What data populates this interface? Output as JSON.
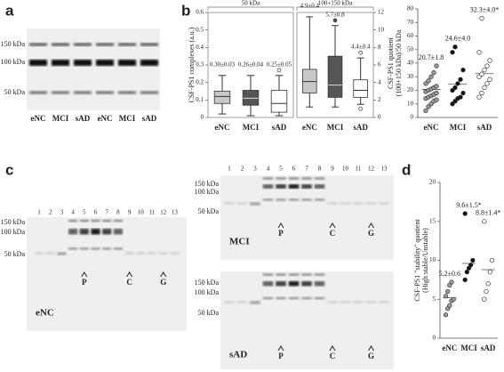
{
  "panel_labels": [
    "a",
    "b",
    "c",
    "d"
  ],
  "size_markers": [
    "150 kDa",
    "100 kDa",
    "50 kDa"
  ],
  "blot_a": {
    "lanes": [
      "eNC",
      "MCI",
      "sAD",
      "eNC",
      "MCI",
      "sAD"
    ]
  },
  "blot_c": {
    "lane_numbers": [
      1,
      2,
      3,
      4,
      5,
      6,
      7,
      8,
      9,
      10,
      11,
      12,
      13
    ],
    "markers": [
      "P",
      "C",
      "G"
    ],
    "groups": [
      "eNC",
      "MCI",
      "sAD"
    ]
  },
  "chart_data": [
    {
      "type": "box",
      "subtitle": "50 kDa",
      "y_label": [
        "CSF-PS1 complexes (a.u.)"
      ],
      "axis_side": "left",
      "categories": [
        "eNC",
        "MCI",
        "sAD"
      ],
      "colors": [
        "#c8c8c8",
        "#555555",
        "#ffffff"
      ],
      "ylim": [
        0,
        0.6
      ],
      "yticks": [
        0,
        0.1,
        0.2,
        0.3,
        0.4,
        0.5,
        0.6
      ],
      "boxes": [
        {
          "low": 0.02,
          "q1": 0.08,
          "median": 0.12,
          "q3": 0.15,
          "high": 0.24,
          "outliers": []
        },
        {
          "low": 0.01,
          "q1": 0.07,
          "median": 0.11,
          "q3": 0.155,
          "high": 0.24,
          "outliers": []
        },
        {
          "low": 0.01,
          "q1": 0.03,
          "median": 0.08,
          "q3": 0.155,
          "high": 0.24,
          "outliers": [
            0.27
          ]
        }
      ],
      "annotations": [
        "0.30±0.03",
        "0.26±0.04",
        "0.25±0.05"
      ]
    },
    {
      "type": "box",
      "subtitle": "100+150 kDa",
      "y_label": [],
      "axis_side": "right",
      "categories": [
        "eNC",
        "MCI",
        "sAD"
      ],
      "colors": [
        "#c8c8c8",
        "#555555",
        "#ffffff"
      ],
      "ylim": [
        0,
        12
      ],
      "yticks": [
        0,
        2,
        4,
        6,
        8,
        10,
        12
      ],
      "boxes": [
        {
          "low": 1.2,
          "q1": 2.8,
          "median": 4.1,
          "q3": 5.5,
          "high": 11.5,
          "outliers": []
        },
        {
          "low": 1.2,
          "q1": 2.3,
          "median": 3.7,
          "q3": 7,
          "high": 10.5,
          "outliers": [
            11.1
          ]
        },
        {
          "low": 1.5,
          "q1": 2.3,
          "median": 3.1,
          "q3": 4.3,
          "high": 6.8,
          "outliers": [
            7.4,
            1.0
          ]
        }
      ],
      "annotations": [
        "4.9±0.4",
        "5.7±0.8",
        "4.4±0.4"
      ]
    },
    {
      "type": "strip",
      "y_label": [
        "CSF-PS1  quotient",
        "(100+150 kDa)/50 kDa"
      ],
      "ylim": [
        0,
        80
      ],
      "yticks": [
        0,
        10,
        20,
        30,
        40,
        50,
        60,
        70,
        80
      ],
      "series": [
        {
          "name": "eNC",
          "color": "#9a9a9a",
          "values": [
            5,
            8,
            10,
            12,
            13,
            14,
            15,
            16,
            17,
            18,
            19,
            20,
            21,
            22,
            23,
            25,
            27,
            30,
            33,
            38
          ],
          "mean": 20.7,
          "mean_label": "20.7±1.8"
        },
        {
          "name": "MCI",
          "color": "#111111",
          "values": [
            10,
            12,
            14,
            15,
            18,
            20,
            22,
            25,
            28,
            35,
            48,
            52
          ],
          "mean": 24.6,
          "mean_label": "24.6±4.0"
        },
        {
          "name": "sAD",
          "color": "#ffffff",
          "values": [
            15,
            18,
            22,
            25,
            28,
            30,
            32,
            35,
            38,
            42,
            48,
            73
          ],
          "mean": 32.3,
          "mean_label": "32.3±4.0*"
        }
      ]
    },
    {
      "type": "strip",
      "y_label": [
        "CSF-PS1 \"stability\" quotient",
        "(High stable/Unstable)"
      ],
      "ylim": [
        0,
        20
      ],
      "yticks": [
        0,
        5,
        10,
        15,
        20
      ],
      "series": [
        {
          "name": "eNC",
          "color": "#9a9a9a",
          "values": [
            3,
            3.8,
            4.2,
            4.8,
            5,
            5.4,
            6,
            6.8,
            7.2
          ],
          "mean": 5.2,
          "mean_label": "5.2±0.6"
        },
        {
          "name": "MCI",
          "color": "#111111",
          "values": [
            7.5,
            8.5,
            9,
            9.4,
            10,
            16
          ],
          "mean": 9.6,
          "mean_label": "9.6±1.5*"
        },
        {
          "name": "sAD",
          "color": "#ffffff",
          "values": [
            5,
            6,
            7,
            8.5,
            10,
            15
          ],
          "mean": 8.8,
          "mean_label": "8.8±1.4*"
        }
      ]
    }
  ]
}
